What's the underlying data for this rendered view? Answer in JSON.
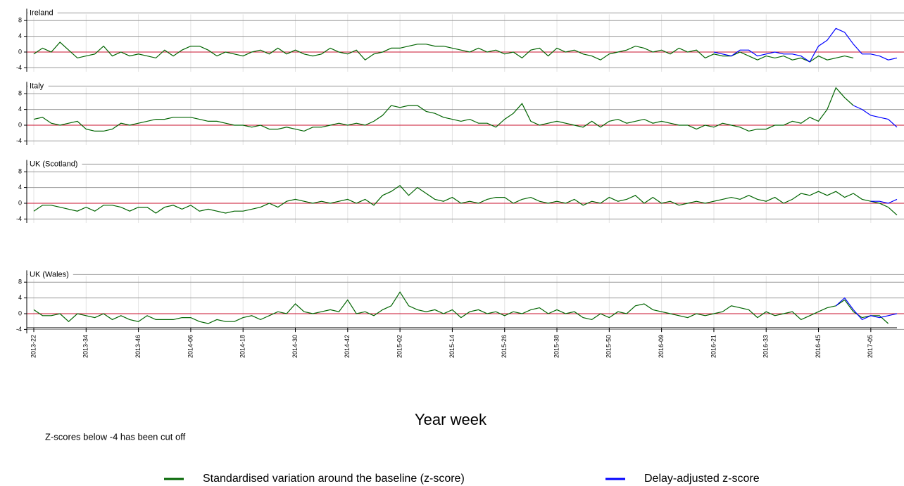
{
  "chart_data": {
    "type": "line",
    "xlabel": "Year week",
    "note": "Z-scores below -4 has been cut off",
    "legend": [
      {
        "name": "Standardised variation around the baseline (z-score)",
        "color": "#006400"
      },
      {
        "name": "Delay-adjusted z-score",
        "color": "#0000ff"
      }
    ],
    "ylim": [
      -5,
      11
    ],
    "yticks": [
      -4,
      0,
      4,
      8
    ],
    "grid": true,
    "categories": [
      "2013-22",
      null,
      null,
      null,
      null,
      null,
      "2013-34",
      null,
      null,
      null,
      null,
      null,
      "2013-46",
      null,
      null,
      null,
      null,
      null,
      "2014-06",
      null,
      null,
      null,
      null,
      null,
      "2014-18",
      null,
      null,
      null,
      null,
      null,
      "2014-30",
      null,
      null,
      null,
      null,
      null,
      "2014-42",
      null,
      null,
      null,
      null,
      null,
      "2015-02",
      null,
      null,
      null,
      null,
      null,
      "2015-14",
      null,
      null,
      null,
      null,
      null,
      "2015-26",
      null,
      null,
      null,
      null,
      null,
      "2015-38",
      null,
      null,
      null,
      null,
      null,
      "2015-50",
      null,
      null,
      null,
      null,
      null,
      "2016-09",
      null,
      null,
      null,
      null,
      null,
      "2016-21",
      null,
      null,
      null,
      null,
      null,
      "2016-33",
      null,
      null,
      null,
      null,
      null,
      "2016-45",
      null,
      null,
      null,
      null,
      null,
      "2017-05",
      null,
      null,
      null
    ],
    "panels": [
      {
        "title": "Ireland",
        "series": [
          {
            "values": [
              -0.5,
              1,
              0,
              2.5,
              0.5,
              -1.5,
              -1,
              -0.5,
              1.5,
              -1,
              0,
              -1,
              -0.5,
              -1,
              -1.5,
              0.5,
              -1,
              0.5,
              1.5,
              1.5,
              0.5,
              -1,
              0,
              -0.5,
              -1,
              0,
              0.5,
              -0.5,
              1,
              -0.5,
              0.5,
              -0.5,
              -1,
              -0.5,
              1,
              0,
              -0.5,
              0.5,
              -2,
              -0.5,
              0,
              1,
              1,
              1.5,
              2,
              2,
              1.5,
              1.5,
              1,
              0.5,
              0,
              1,
              0,
              0.5,
              -0.5,
              0,
              -1.5,
              0.5,
              1,
              -1,
              1,
              0,
              0.5,
              -0.5,
              -1,
              -2,
              -0.5,
              0,
              0.5,
              1.5,
              1,
              0,
              0.5,
              -0.5,
              1,
              0,
              0.5,
              -1.5,
              -0.5,
              -1,
              -1,
              0,
              -1,
              -2,
              -1,
              -1.5,
              -1,
              -2,
              -1.5,
              -2.5,
              -1,
              -2,
              -1.5,
              -1,
              -1.5,
              null,
              null,
              null,
              null,
              null
            ]
          },
          {
            "values": [
              null,
              null,
              null,
              null,
              null,
              null,
              null,
              null,
              null,
              null,
              null,
              null,
              null,
              null,
              null,
              null,
              null,
              null,
              null,
              null,
              null,
              null,
              null,
              null,
              null,
              null,
              null,
              null,
              null,
              null,
              null,
              null,
              null,
              null,
              null,
              null,
              null,
              null,
              null,
              null,
              null,
              null,
              null,
              null,
              null,
              null,
              null,
              null,
              null,
              null,
              null,
              null,
              null,
              null,
              null,
              null,
              null,
              null,
              null,
              null,
              null,
              null,
              null,
              null,
              null,
              null,
              null,
              null,
              null,
              null,
              null,
              null,
              null,
              null,
              null,
              null,
              null,
              null,
              0,
              -0.5,
              -1,
              0.5,
              0.5,
              -1,
              -0.5,
              0,
              -0.5,
              -0.5,
              -1,
              -2.5,
              1.5,
              3,
              6,
              5,
              2,
              -0.5,
              -0.5,
              -1,
              -2,
              -1.5
            ]
          }
        ]
      },
      {
        "title": "Italy",
        "series": [
          {
            "values": [
              1.5,
              2,
              0.5,
              0,
              0.5,
              1,
              -1,
              -1.5,
              -1.5,
              -1,
              0.5,
              0,
              0.5,
              1,
              1.5,
              1.5,
              2,
              2,
              2,
              1.5,
              1,
              1,
              0.5,
              0,
              0,
              -0.5,
              0,
              -1,
              -1,
              -0.5,
              -1,
              -1.5,
              -0.5,
              -0.5,
              0,
              0.5,
              0,
              0.5,
              0,
              1,
              2.5,
              5,
              4.5,
              5,
              5,
              3.5,
              3,
              2,
              1.5,
              1,
              1.5,
              0.5,
              0.5,
              -0.5,
              1.5,
              3,
              5.5,
              1,
              0,
              0.5,
              1,
              0.5,
              0,
              -0.5,
              1,
              -0.5,
              1,
              1.5,
              0.5,
              1,
              1.5,
              0.5,
              1,
              0.5,
              0,
              0,
              -1,
              0,
              -0.5,
              0.5,
              0,
              -0.5,
              -1.5,
              -1,
              -1,
              0,
              0,
              1,
              0.5,
              2,
              1,
              4,
              9.5,
              7,
              5,
              null,
              null,
              null,
              null,
              null
            ]
          },
          {
            "values": [
              null,
              null,
              null,
              null,
              null,
              null,
              null,
              null,
              null,
              null,
              null,
              null,
              null,
              null,
              null,
              null,
              null,
              null,
              null,
              null,
              null,
              null,
              null,
              null,
              null,
              null,
              null,
              null,
              null,
              null,
              null,
              null,
              null,
              null,
              null,
              null,
              null,
              null,
              null,
              null,
              null,
              null,
              null,
              null,
              null,
              null,
              null,
              null,
              null,
              null,
              null,
              null,
              null,
              null,
              null,
              null,
              null,
              null,
              null,
              null,
              null,
              null,
              null,
              null,
              null,
              null,
              null,
              null,
              null,
              null,
              null,
              null,
              null,
              null,
              null,
              null,
              null,
              null,
              null,
              null,
              null,
              null,
              null,
              null,
              null,
              null,
              null,
              null,
              null,
              null,
              null,
              null,
              null,
              null,
              5,
              4,
              2.5,
              2,
              1.5,
              -0.5
            ]
          }
        ]
      },
      {
        "title": "UK (Scotland)",
        "series": [
          {
            "values": [
              -2,
              -0.5,
              -0.5,
              -1,
              -1.5,
              -2,
              -1,
              -2,
              -0.5,
              -0.5,
              -1,
              -2,
              -1,
              -1,
              -2.5,
              -1,
              -0.5,
              -1.5,
              -0.5,
              -2,
              -1.5,
              -2,
              -2.5,
              -2,
              -2,
              -1.5,
              -1,
              0,
              -1,
              0.5,
              1,
              0.5,
              0,
              0.5,
              0,
              0.5,
              1,
              0,
              1,
              -0.5,
              2,
              3,
              4.5,
              2,
              4,
              2.5,
              1,
              0.5,
              1.5,
              0,
              0.5,
              0,
              1,
              1.5,
              1.5,
              0,
              1,
              1.5,
              0.5,
              0,
              0.5,
              0,
              1,
              -0.5,
              0.5,
              0,
              1.5,
              0.5,
              1,
              2,
              0,
              1.5,
              0,
              0.5,
              -0.5,
              0,
              0.5,
              0,
              0.5,
              1,
              1.5,
              1,
              2,
              1,
              0.5,
              1.5,
              0,
              1,
              2.5,
              2,
              3,
              2,
              3,
              1.5,
              2.5,
              1,
              0.5,
              0,
              -1,
              -3
            ]
          },
          {
            "values": [
              null,
              null,
              null,
              null,
              null,
              null,
              null,
              null,
              null,
              null,
              null,
              null,
              null,
              null,
              null,
              null,
              null,
              null,
              null,
              null,
              null,
              null,
              null,
              null,
              null,
              null,
              null,
              null,
              null,
              null,
              null,
              null,
              null,
              null,
              null,
              null,
              null,
              null,
              null,
              null,
              null,
              null,
              null,
              null,
              null,
              null,
              null,
              null,
              null,
              null,
              null,
              null,
              null,
              null,
              null,
              null,
              null,
              null,
              null,
              null,
              null,
              null,
              null,
              null,
              null,
              null,
              null,
              null,
              null,
              null,
              null,
              null,
              null,
              null,
              null,
              null,
              null,
              null,
              null,
              null,
              null,
              null,
              null,
              null,
              null,
              null,
              null,
              null,
              null,
              null,
              null,
              null,
              null,
              null,
              null,
              null,
              0.5,
              0.5,
              0,
              1
            ]
          }
        ]
      },
      {
        "title": "UK (Wales)",
        "series": [
          {
            "values": [
              1,
              -0.5,
              -0.5,
              0,
              -2,
              0,
              -0.5,
              -1,
              0,
              -1.5,
              -0.5,
              -1.5,
              -2,
              -0.5,
              -1.5,
              -1.5,
              -1.5,
              -1,
              -1,
              -2,
              -2.5,
              -1.5,
              -2,
              -2,
              -1,
              -0.5,
              -1.5,
              -0.5,
              0.5,
              0,
              2.5,
              0.5,
              0,
              0.5,
              1,
              0.5,
              3.5,
              0,
              0.5,
              -0.5,
              1,
              2,
              5.5,
              2,
              1,
              0.5,
              1,
              0,
              1,
              -1,
              0.5,
              1,
              0,
              0.5,
              -0.5,
              0.5,
              0,
              1,
              1.5,
              0,
              1,
              0,
              0.5,
              -1,
              -1.5,
              0,
              -1,
              0.5,
              0,
              2,
              2.5,
              1,
              0.5,
              0,
              -0.5,
              -1,
              0,
              -0.5,
              0,
              0.5,
              2,
              1.5,
              1,
              -1,
              0.5,
              -0.5,
              0,
              0.5,
              -1.5,
              -0.5,
              0.5,
              1.5,
              2,
              3.5,
              0.5,
              -1,
              -0.5,
              -0.5,
              -2.5,
              null
            ]
          },
          {
            "values": [
              null,
              null,
              null,
              null,
              null,
              null,
              null,
              null,
              null,
              null,
              null,
              null,
              null,
              null,
              null,
              null,
              null,
              null,
              null,
              null,
              null,
              null,
              null,
              null,
              null,
              null,
              null,
              null,
              null,
              null,
              null,
              null,
              null,
              null,
              null,
              null,
              null,
              null,
              null,
              null,
              null,
              null,
              null,
              null,
              null,
              null,
              null,
              null,
              null,
              null,
              null,
              null,
              null,
              null,
              null,
              null,
              null,
              null,
              null,
              null,
              null,
              null,
              null,
              null,
              null,
              null,
              null,
              null,
              null,
              null,
              null,
              null,
              null,
              null,
              null,
              null,
              null,
              null,
              null,
              null,
              null,
              null,
              null,
              null,
              null,
              null,
              null,
              null,
              null,
              null,
              null,
              null,
              2,
              4,
              1,
              -1.5,
              -0.5,
              -1,
              -0.5,
              0
            ]
          }
        ]
      }
    ]
  }
}
